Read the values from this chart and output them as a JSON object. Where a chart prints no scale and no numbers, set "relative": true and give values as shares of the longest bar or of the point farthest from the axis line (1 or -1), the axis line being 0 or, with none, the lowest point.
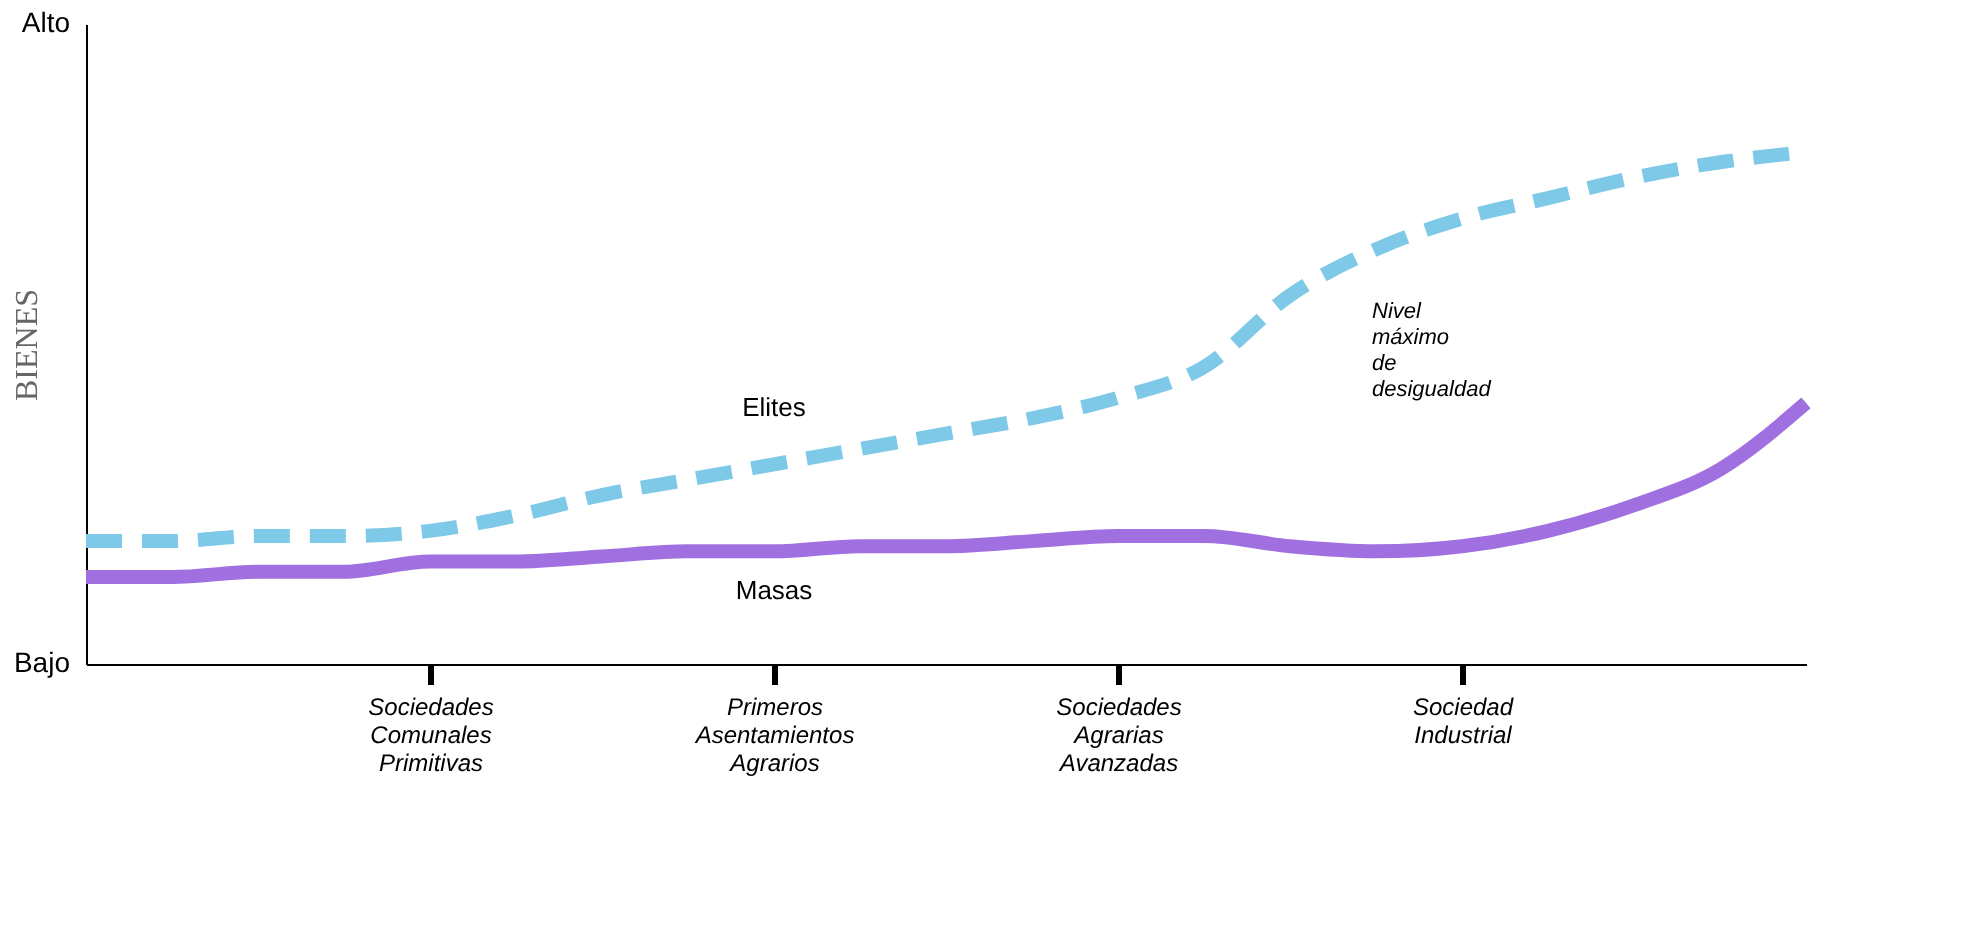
{
  "chart_data": {
    "type": "line",
    "relative": true,
    "ylabel": "BIENES",
    "categories": [
      null,
      null,
      null,
      null,
      "Sociedades Comunales Primitivas",
      null,
      null,
      null,
      "Primeros Asentamientos Agrarios",
      null,
      null,
      null,
      "Sociedades Agrarias Avanzadas",
      null,
      null,
      null,
      "Sociedad Industrial",
      null,
      null,
      null,
      null
    ],
    "series": [
      {
        "name": "Elites",
        "color": "#7ec8e8",
        "line_style": "dashed",
        "values": [
          0.24,
          0.24,
          0.25,
          0.25,
          0.26,
          0.29,
          0.33,
          0.36,
          0.39,
          0.42,
          0.45,
          0.48,
          0.52,
          0.58,
          0.72,
          0.81,
          0.87,
          0.91,
          0.95,
          0.98,
          1.0
        ]
      },
      {
        "name": "Masas",
        "color": "#a070e0",
        "line_style": "solid",
        "values": [
          0.17,
          0.17,
          0.18,
          0.18,
          0.2,
          0.2,
          0.21,
          0.22,
          0.22,
          0.23,
          0.23,
          0.24,
          0.25,
          0.25,
          0.23,
          0.22,
          0.23,
          0.26,
          0.31,
          0.38,
          0.51
        ]
      }
    ],
    "annotations": [
      "Alto",
      "Bajo",
      "Nivel máximo de desigualdad"
    ],
    "marker": "none"
  }
}
